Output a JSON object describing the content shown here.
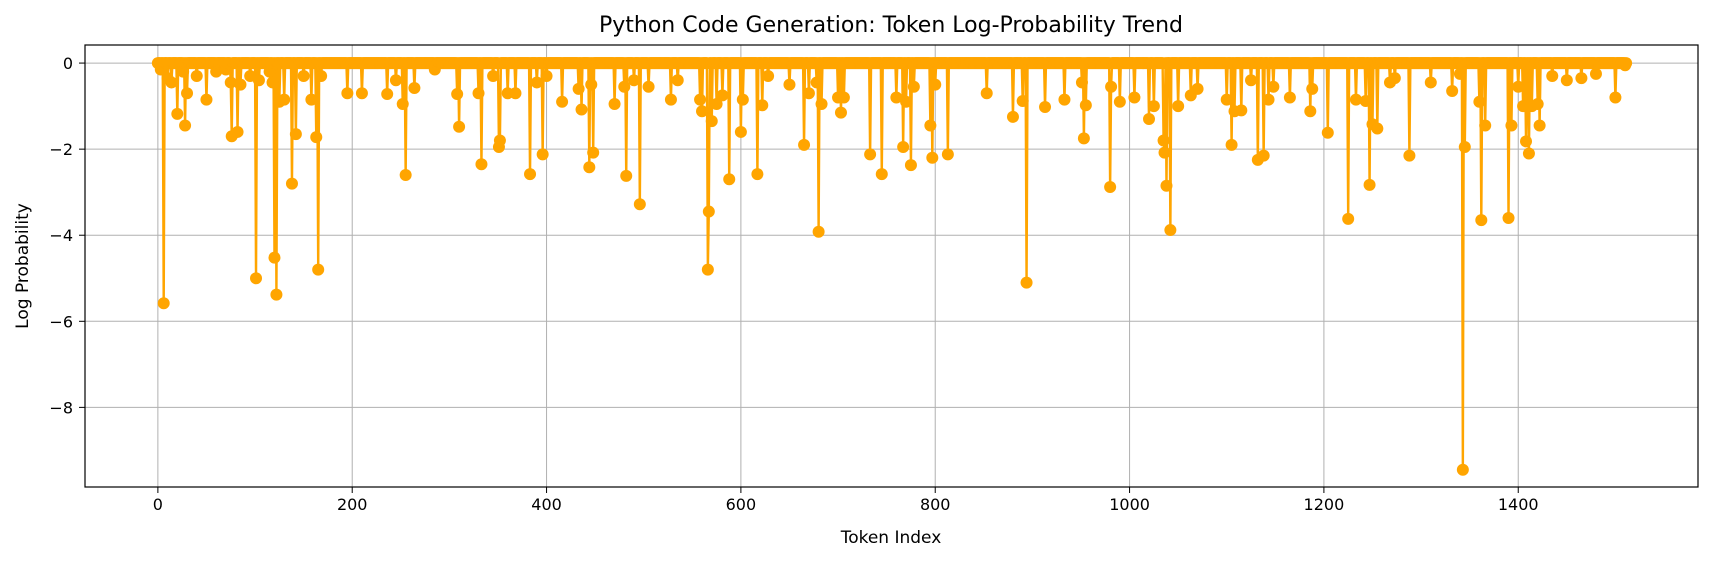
{
  "chart_data": {
    "type": "line",
    "title": "Python Code Generation: Token Log-Probability Trend",
    "xlabel": "Token Index",
    "ylabel": "Log Probability",
    "xlim": [
      -75,
      1585
    ],
    "ylim": [
      -9.85,
      0.42
    ],
    "xticks": [
      0,
      200,
      400,
      600,
      800,
      1000,
      1200,
      1400
    ],
    "yticks": [
      0,
      -2,
      -4,
      -6,
      -8
    ],
    "grid": true,
    "legend": "none",
    "n_tokens": 1512,
    "series": [
      {
        "color": "#ffa500",
        "marker": "circle",
        "baseline": 0,
        "dips": [
          [
            3,
            -0.15
          ],
          [
            6,
            -5.58
          ],
          [
            10,
            -0.35
          ],
          [
            14,
            -0.45
          ],
          [
            20,
            -1.18
          ],
          [
            26,
            -0.2
          ],
          [
            28,
            -1.45
          ],
          [
            30,
            -0.7
          ],
          [
            40,
            -0.3
          ],
          [
            50,
            -0.85
          ],
          [
            60,
            -0.2
          ],
          [
            70,
            -0.15
          ],
          [
            75,
            -0.45
          ],
          [
            76,
            -1.7
          ],
          [
            82,
            -1.6
          ],
          [
            85,
            -0.5
          ],
          [
            95,
            -0.3
          ],
          [
            101,
            -5.0
          ],
          [
            104,
            -0.4
          ],
          [
            115,
            -0.2
          ],
          [
            118,
            -0.45
          ],
          [
            120,
            -4.52
          ],
          [
            122,
            -5.38
          ],
          [
            125,
            -0.9
          ],
          [
            130,
            -0.85
          ],
          [
            138,
            -2.8
          ],
          [
            142,
            -1.65
          ],
          [
            150,
            -0.3
          ],
          [
            158,
            -0.85
          ],
          [
            163,
            -1.72
          ],
          [
            165,
            -4.8
          ],
          [
            168,
            -0.3
          ],
          [
            195,
            -0.7
          ],
          [
            210,
            -0.7
          ],
          [
            236,
            -0.72
          ],
          [
            245,
            -0.4
          ],
          [
            252,
            -0.95
          ],
          [
            255,
            -2.6
          ],
          [
            264,
            -0.58
          ],
          [
            285,
            -0.15
          ],
          [
            308,
            -0.72
          ],
          [
            310,
            -1.48
          ],
          [
            330,
            -0.7
          ],
          [
            333,
            -2.35
          ],
          [
            345,
            -0.3
          ],
          [
            351,
            -1.95
          ],
          [
            352,
            -1.8
          ],
          [
            360,
            -0.7
          ],
          [
            368,
            -0.7
          ],
          [
            383,
            -2.58
          ],
          [
            390,
            -0.45
          ],
          [
            396,
            -2.12
          ],
          [
            400,
            -0.3
          ],
          [
            416,
            -0.9
          ],
          [
            433,
            -0.6
          ],
          [
            436,
            -1.08
          ],
          [
            444,
            -2.42
          ],
          [
            446,
            -0.5
          ],
          [
            448,
            -2.08
          ],
          [
            470,
            -0.95
          ],
          [
            480,
            -0.55
          ],
          [
            482,
            -2.62
          ],
          [
            490,
            -0.4
          ],
          [
            496,
            -3.28
          ],
          [
            505,
            -0.55
          ],
          [
            528,
            -0.85
          ],
          [
            535,
            -0.4
          ],
          [
            558,
            -0.85
          ],
          [
            560,
            -1.12
          ],
          [
            566,
            -4.8
          ],
          [
            567,
            -3.45
          ],
          [
            570,
            -1.35
          ],
          [
            575,
            -0.95
          ],
          [
            581,
            -0.75
          ],
          [
            588,
            -2.7
          ],
          [
            600,
            -1.6
          ],
          [
            602,
            -0.85
          ],
          [
            617,
            -2.58
          ],
          [
            622,
            -0.98
          ],
          [
            628,
            -0.3
          ],
          [
            650,
            -0.5
          ],
          [
            665,
            -1.9
          ],
          [
            670,
            -0.7
          ],
          [
            678,
            -0.45
          ],
          [
            680,
            -3.92
          ],
          [
            683,
            -0.95
          ],
          [
            700,
            -0.8
          ],
          [
            703,
            -1.15
          ],
          [
            706,
            -0.8
          ],
          [
            733,
            -2.12
          ],
          [
            745,
            -2.58
          ],
          [
            760,
            -0.8
          ],
          [
            767,
            -1.95
          ],
          [
            770,
            -0.9
          ],
          [
            775,
            -2.37
          ],
          [
            778,
            -0.55
          ],
          [
            795,
            -1.45
          ],
          [
            797,
            -2.2
          ],
          [
            800,
            -0.5
          ],
          [
            813,
            -2.12
          ],
          [
            853,
            -0.7
          ],
          [
            880,
            -1.25
          ],
          [
            890,
            -0.88
          ],
          [
            894,
            -5.1
          ],
          [
            913,
            -1.02
          ],
          [
            933,
            -0.85
          ],
          [
            951,
            -0.45
          ],
          [
            953,
            -1.75
          ],
          [
            955,
            -0.98
          ],
          [
            980,
            -2.88
          ],
          [
            981,
            -0.55
          ],
          [
            990,
            -0.9
          ],
          [
            1005,
            -0.8
          ],
          [
            1020,
            -1.3
          ],
          [
            1025,
            -1.0
          ],
          [
            1035,
            -1.8
          ],
          [
            1036,
            -2.08
          ],
          [
            1038,
            -2.85
          ],
          [
            1042,
            -3.88
          ],
          [
            1050,
            -1.0
          ],
          [
            1063,
            -0.75
          ],
          [
            1070,
            -0.6
          ],
          [
            1100,
            -0.85
          ],
          [
            1105,
            -1.9
          ],
          [
            1108,
            -1.12
          ],
          [
            1115,
            -1.1
          ],
          [
            1125,
            -0.4
          ],
          [
            1132,
            -2.25
          ],
          [
            1138,
            -2.15
          ],
          [
            1143,
            -0.85
          ],
          [
            1148,
            -0.55
          ],
          [
            1165,
            -0.8
          ],
          [
            1186,
            -1.12
          ],
          [
            1188,
            -0.6
          ],
          [
            1204,
            -1.62
          ],
          [
            1225,
            -3.62
          ],
          [
            1233,
            -0.85
          ],
          [
            1243,
            -0.88
          ],
          [
            1247,
            -2.83
          ],
          [
            1250,
            -1.42
          ],
          [
            1255,
            -1.52
          ],
          [
            1268,
            -0.45
          ],
          [
            1273,
            -0.35
          ],
          [
            1288,
            -2.15
          ],
          [
            1310,
            -0.45
          ],
          [
            1332,
            -0.65
          ],
          [
            1340,
            -0.25
          ],
          [
            1343,
            -9.45
          ],
          [
            1345,
            -1.95
          ],
          [
            1360,
            -0.9
          ],
          [
            1362,
            -3.65
          ],
          [
            1366,
            -1.45
          ],
          [
            1390,
            -3.6
          ],
          [
            1393,
            -1.45
          ],
          [
            1400,
            -0.55
          ],
          [
            1405,
            -1.0
          ],
          [
            1408,
            -1.82
          ],
          [
            1411,
            -2.1
          ],
          [
            1414,
            -1.0
          ],
          [
            1420,
            -0.95
          ],
          [
            1422,
            -1.45
          ],
          [
            1435,
            -0.3
          ],
          [
            1450,
            -0.4
          ],
          [
            1465,
            -0.35
          ],
          [
            1480,
            -0.25
          ],
          [
            1500,
            -0.8
          ],
          [
            1510,
            -0.05
          ]
        ]
      }
    ]
  }
}
